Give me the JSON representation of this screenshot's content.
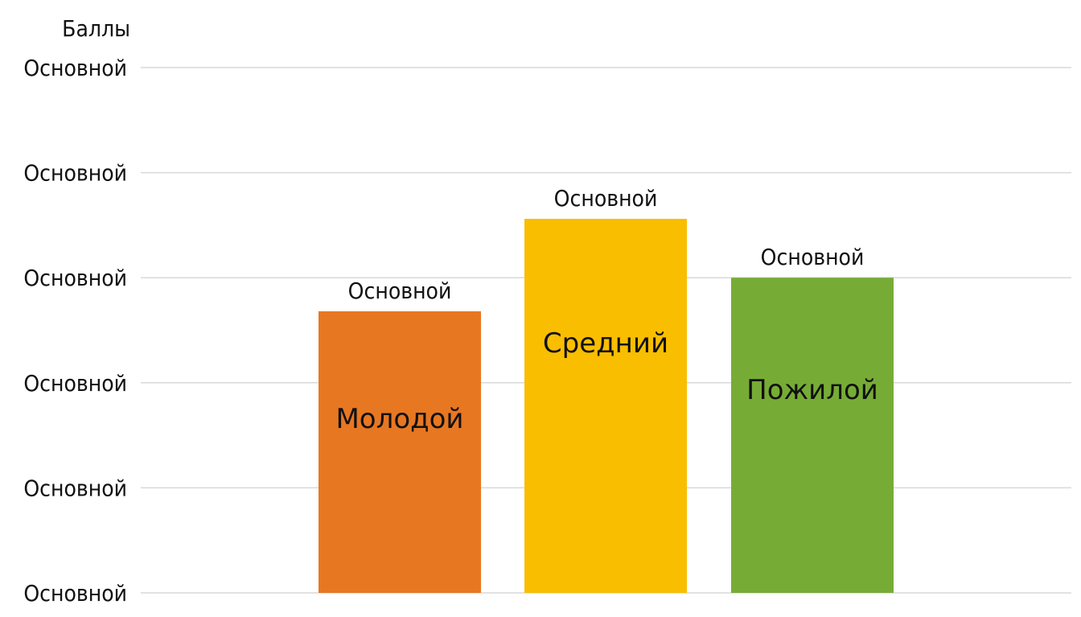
{
  "chart_data": {
    "type": "bar",
    "title": "",
    "ylabel": "Баллы",
    "xlabel": "",
    "y_tick_labels": [
      "Основной",
      "Основной",
      "Основной",
      "Основной",
      "Основной",
      "Основной"
    ],
    "ylim": [
      0,
      5
    ],
    "grid": true,
    "categories": [
      "Молодой",
      "Средний",
      "Пожилой"
    ],
    "values": [
      2.68,
      3.56,
      3.0
    ],
    "data_labels": [
      "Основной",
      "Основной",
      "Основной"
    ],
    "colors": [
      "#E87722",
      "#F9BE00",
      "#76AC35"
    ],
    "category_label_position": "inside-bar"
  }
}
